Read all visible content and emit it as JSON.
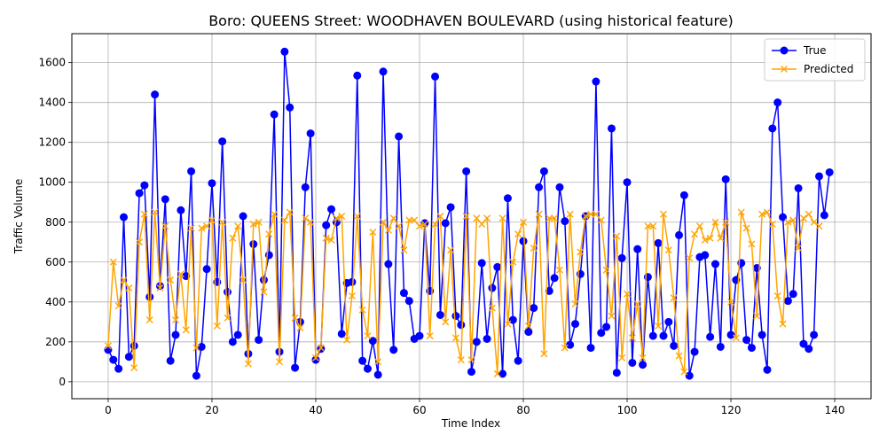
{
  "chart_data": {
    "type": "line",
    "title": "Boro: QUEENS Street: WOODHAVEN BOULEVARD (using historical feature)",
    "xlabel": "Time Index",
    "ylabel": "Traffic Volume",
    "xlim": [
      -7,
      147
    ],
    "ylim": [
      -85,
      1745
    ],
    "xticks": [
      0,
      20,
      40,
      60,
      80,
      100,
      120,
      140
    ],
    "yticks": [
      0,
      200,
      400,
      600,
      800,
      1000,
      1200,
      1400,
      1600
    ],
    "grid": true,
    "legend_position": "top-right",
    "series": [
      {
        "name": "True",
        "color": "#0000ff",
        "marker": "circle",
        "values": [
          160,
          110,
          65,
          825,
          125,
          180,
          945,
          985,
          425,
          1440,
          480,
          915,
          105,
          235,
          860,
          530,
          1055,
          30,
          175,
          565,
          995,
          500,
          1205,
          450,
          200,
          235,
          830,
          140,
          690,
          210,
          510,
          635,
          1340,
          150,
          1655,
          1375,
          70,
          300,
          975,
          1245,
          110,
          165,
          785,
          865,
          800,
          240,
          495,
          500,
          1535,
          105,
          65,
          205,
          35,
          1555,
          590,
          160,
          1230,
          445,
          405,
          215,
          230,
          795,
          455,
          1530,
          335,
          795,
          875,
          330,
          285,
          1055,
          50,
          200,
          595,
          215,
          470,
          575,
          40,
          920,
          310,
          105,
          705,
          250,
          370,
          975,
          1055,
          455,
          520,
          975,
          805,
          185,
          290,
          540,
          830,
          170,
          1505,
          245,
          275,
          1270,
          45,
          620,
          1000,
          95,
          665,
          85,
          525,
          230,
          695,
          230,
          300,
          180,
          735,
          935,
          30,
          150,
          625,
          635,
          225,
          590,
          175,
          1015,
          235,
          510,
          595,
          210,
          170,
          570,
          235,
          60,
          1270,
          1400,
          825,
          405,
          440,
          970,
          190,
          165,
          235,
          1030,
          835,
          1050
        ]
      },
      {
        "name": "Predicted",
        "color": "#ffa500",
        "marker": "x",
        "values": [
          180,
          600,
          380,
          510,
          470,
          70,
          700,
          840,
          310,
          850,
          470,
          780,
          510,
          310,
          540,
          260,
          770,
          170,
          770,
          780,
          810,
          280,
          800,
          320,
          720,
          780,
          510,
          90,
          790,
          800,
          450,
          740,
          840,
          100,
          810,
          850,
          320,
          270,
          820,
          800,
          120,
          170,
          720,
          710,
          820,
          830,
          210,
          430,
          830,
          360,
          230,
          750,
          100,
          800,
          760,
          820,
          780,
          660,
          810,
          810,
          780,
          790,
          230,
          790,
          830,
          300,
          660,
          220,
          110,
          830,
          110,
          820,
          790,
          820,
          370,
          40,
          820,
          290,
          600,
          740,
          800,
          280,
          670,
          840,
          140,
          820,
          820,
          560,
          170,
          840,
          390,
          650,
          830,
          840,
          840,
          810,
          560,
          330,
          730,
          120,
          440,
          220,
          390,
          120,
          780,
          780,
          280,
          840,
          660,
          420,
          130,
          50,
          620,
          740,
          780,
          710,
          720,
          800,
          720,
          800,
          400,
          220,
          850,
          770,
          690,
          330,
          840,
          850,
          790,
          430,
          290,
          800,
          810,
          670,
          820,
          840,
          800,
          780
        ]
      }
    ]
  }
}
